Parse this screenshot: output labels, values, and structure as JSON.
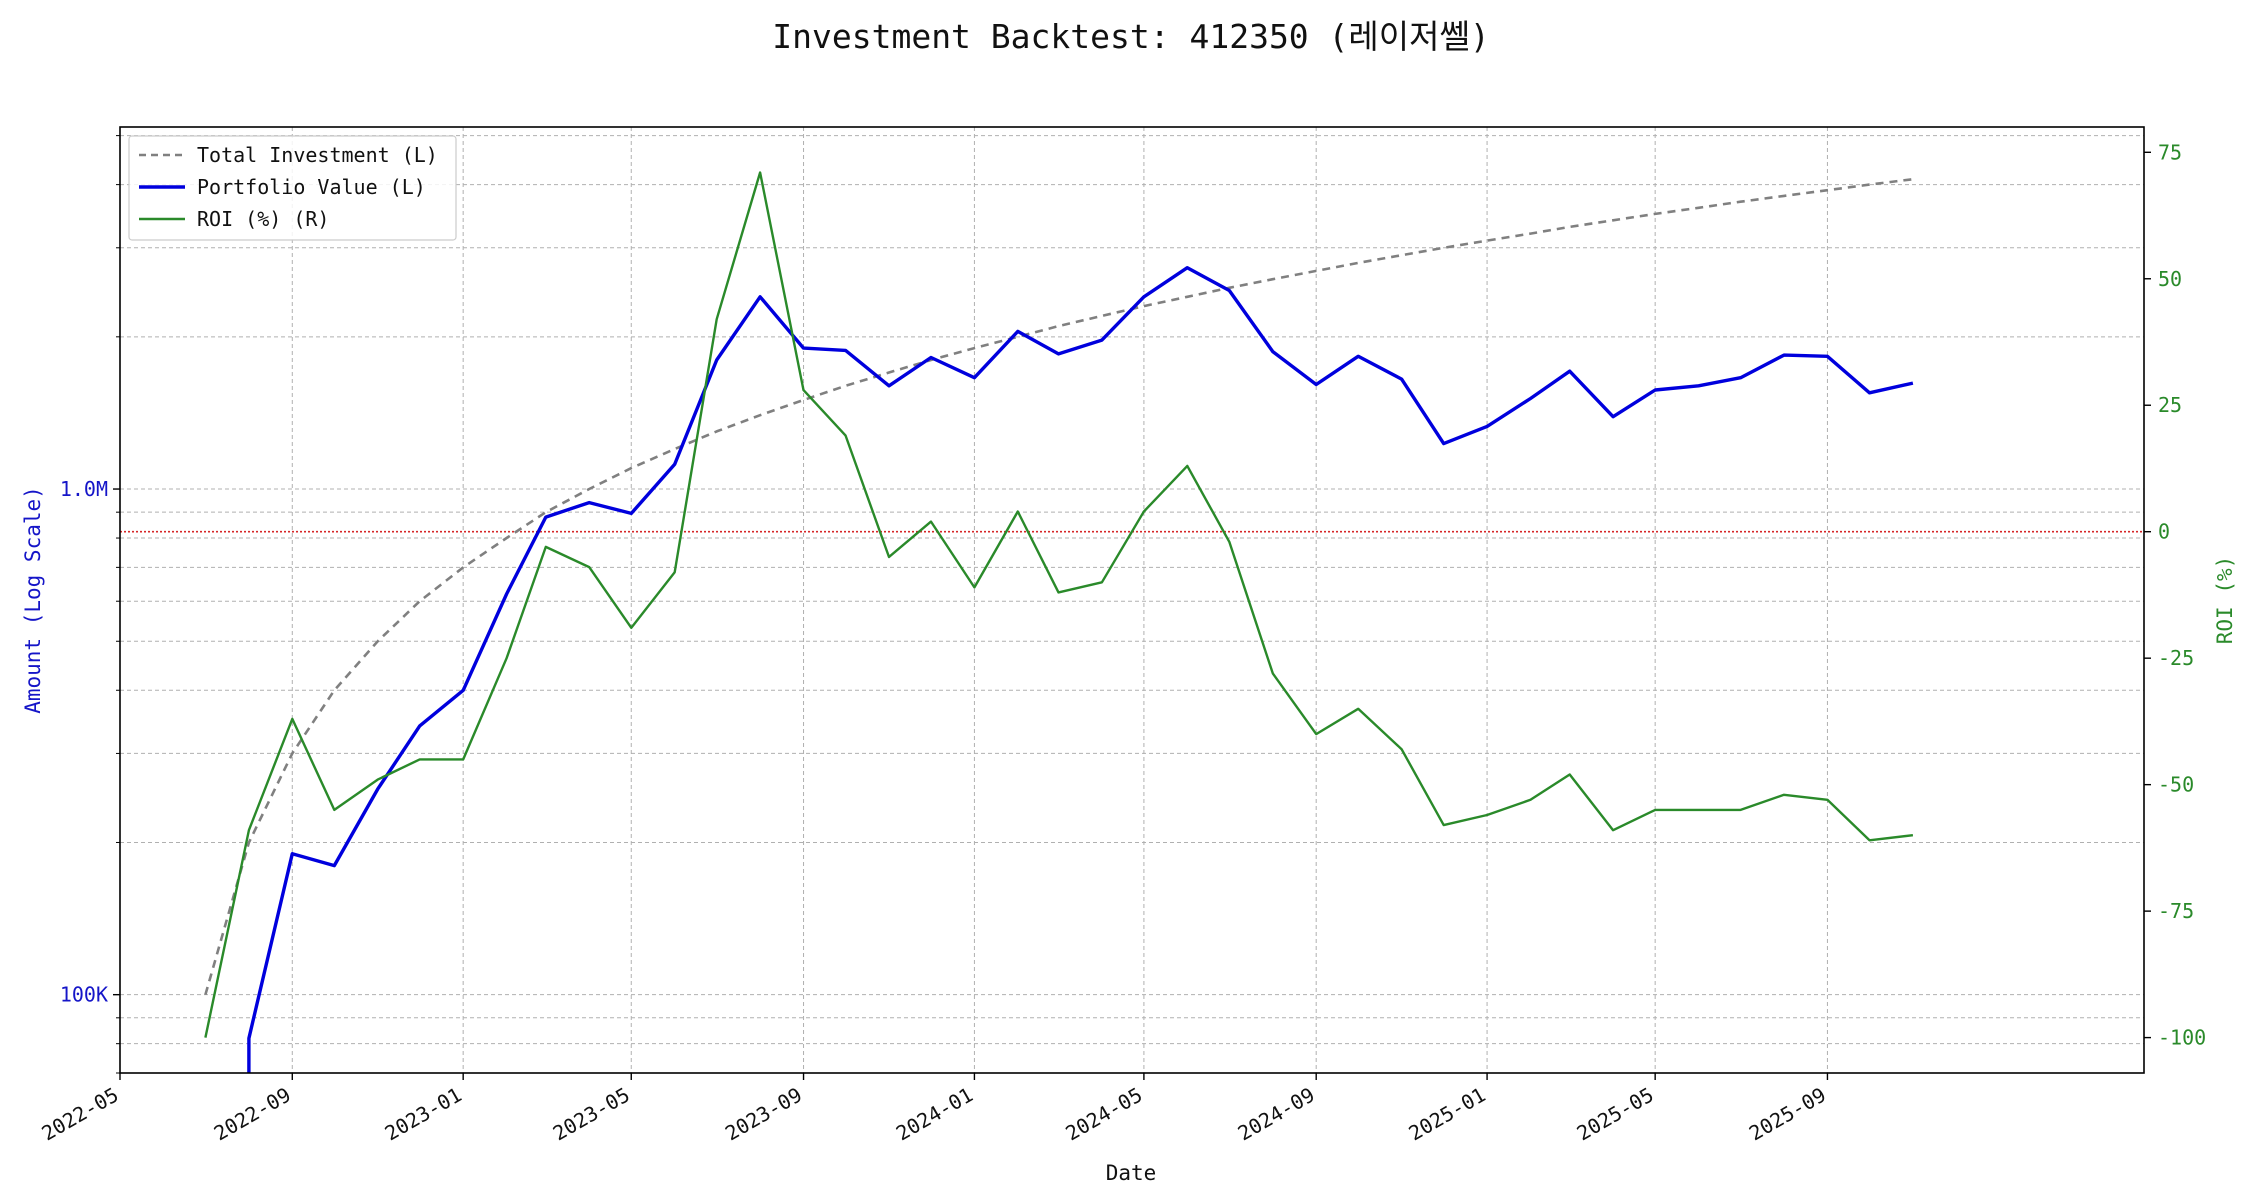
{
  "chart_data": {
    "type": "line",
    "title": "Investment Backtest: 412350 (레이저쎌)",
    "xlabel": "Date",
    "ylabel_left": "Amount (Log Scale)",
    "ylabel_right": "ROI (%)",
    "left_axis_scale": "log",
    "left_ylim": [
      70000,
      5200000
    ],
    "right_ylim": [
      -107,
      80
    ],
    "xlim": [
      "2022-05-01",
      "2026-04-15"
    ],
    "grid": true,
    "legend_position": "upper left",
    "x_tick_labels": [
      "2022-05",
      "2022-09",
      "2023-01",
      "2023-05",
      "2023-09",
      "2024-01",
      "2024-05",
      "2024-09",
      "2025-01",
      "2025-05",
      "2025-09"
    ],
    "x_tick_dates": [
      "2022-05-01",
      "2022-09-01",
      "2023-01-01",
      "2023-05-01",
      "2023-09-01",
      "2024-01-01",
      "2024-05-01",
      "2024-09-01",
      "2025-01-01",
      "2025-05-01",
      "2025-09-01"
    ],
    "left_tick_labels": [
      {
        "value": 100000,
        "label": "100K"
      },
      {
        "value": 1000000,
        "label": "1.0M"
      }
    ],
    "right_tick_labels": [
      {
        "value": 75,
        "label": "75"
      },
      {
        "value": 50,
        "label": "50"
      },
      {
        "value": 25,
        "label": "25"
      },
      {
        "value": 0,
        "label": "0"
      },
      {
        "value": -25,
        "label": "-25"
      },
      {
        "value": -50,
        "label": "-50"
      },
      {
        "value": -75,
        "label": "-75"
      },
      {
        "value": -100,
        "label": "-100"
      }
    ],
    "zero_line": {
      "axis": "right",
      "value": 0,
      "color": "#d62728"
    },
    "x": [
      "2022-07-01",
      "2022-08-01",
      "2022-09-01",
      "2022-10-01",
      "2022-11-01",
      "2022-12-01",
      "2023-01-01",
      "2023-02-01",
      "2023-03-01",
      "2023-04-01",
      "2023-05-01",
      "2023-06-01",
      "2023-07-01",
      "2023-08-01",
      "2023-09-01",
      "2023-10-01",
      "2023-11-01",
      "2023-12-01",
      "2024-01-01",
      "2024-02-01",
      "2024-03-01",
      "2024-04-01",
      "2024-05-01",
      "2024-06-01",
      "2024-07-01",
      "2024-08-01",
      "2024-09-01",
      "2024-10-01",
      "2024-11-01",
      "2024-12-01",
      "2025-01-01",
      "2025-02-01",
      "2025-03-01",
      "2025-04-01",
      "2025-05-01",
      "2025-06-01",
      "2025-07-01",
      "2025-08-01",
      "2025-09-01",
      "2025-10-01",
      "2025-11-01"
    ],
    "series": [
      {
        "name": "Total Investment (L)",
        "axis": "left",
        "color": "#808080",
        "style": "dashed",
        "values": [
          100000,
          200000,
          300000,
          400000,
          500000,
          600000,
          700000,
          800000,
          900000,
          1000000,
          1100000,
          1200000,
          1300000,
          1400000,
          1500000,
          1600000,
          1700000,
          1800000,
          1900000,
          2000000,
          2100000,
          2200000,
          2300000,
          2400000,
          2500000,
          2600000,
          2700000,
          2800000,
          2900000,
          3000000,
          3100000,
          3200000,
          3300000,
          3400000,
          3500000,
          3600000,
          3700000,
          3800000,
          3900000,
          4000000,
          4100000
        ]
      },
      {
        "name": "Portfolio Value (L)",
        "axis": "left",
        "color": "#0000dd",
        "style": "solid",
        "values": [
          null,
          82000,
          190000,
          180000,
          255000,
          340000,
          400000,
          620000,
          880000,
          940000,
          895000,
          1120000,
          1800000,
          2400000,
          1900000,
          1880000,
          1600000,
          1820000,
          1660000,
          2050000,
          1850000,
          1970000,
          2400000,
          2740000,
          2470000,
          1870000,
          1610000,
          1830000,
          1650000,
          1230000,
          1330000,
          1510000,
          1710000,
          1390000,
          1570000,
          1600000,
          1660000,
          1840000,
          1830000,
          1550000,
          1620000
        ]
      },
      {
        "name": "ROI (%) (R)",
        "axis": "right",
        "color": "#2a8a2a",
        "style": "solid",
        "values": [
          -100,
          -59,
          -37,
          -55,
          -49,
          -45,
          -45,
          -25,
          -3,
          -7,
          -19,
          -8,
          42,
          71,
          28,
          19,
          -5,
          2,
          -11,
          4,
          -12,
          -10,
          4,
          13,
          -2,
          -28,
          -40,
          -35,
          -43,
          -58,
          -56,
          -53,
          -48,
          -59,
          -55,
          -55,
          -55,
          -52,
          -53,
          -61,
          -60
        ]
      }
    ]
  }
}
